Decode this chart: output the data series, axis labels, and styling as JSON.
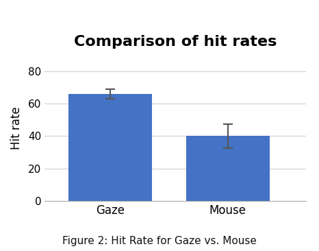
{
  "categories": [
    "Gaze",
    "Mouse"
  ],
  "values": [
    66.0,
    40.0
  ],
  "errors": [
    3.0,
    7.5
  ],
  "bar_color": "#4472C4",
  "title": "Comparison of hit rates",
  "ylabel": "Hit rate",
  "ylim": [
    0,
    90
  ],
  "yticks": [
    0,
    20,
    40,
    60,
    80
  ],
  "title_fontsize": 16,
  "axis_label_fontsize": 12,
  "tick_fontsize": 11,
  "caption": "Figure 2: Hit Rate for Gaze vs. Mouse",
  "caption_fontsize": 11,
  "background_color": "#ffffff",
  "error_color": "#555555",
  "error_capsize": 5,
  "bar_width": 0.32,
  "grid_color": "#d0d0d0",
  "bar_positions": [
    0.25,
    0.7
  ]
}
